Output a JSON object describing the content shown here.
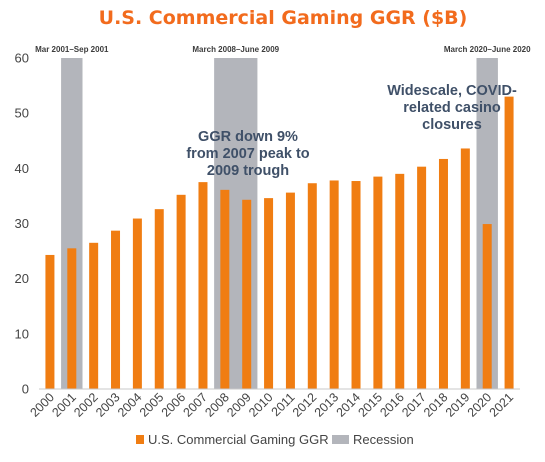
{
  "chart_data": {
    "type": "bar",
    "title": "U.S. Commercial Gaming GGR ($B)",
    "categories": [
      "2000",
      "2001",
      "2002",
      "2003",
      "2004",
      "2005",
      "2006",
      "2007",
      "2008",
      "2009",
      "2010",
      "2011",
      "2012",
      "2013",
      "2014",
      "2015",
      "2016",
      "2017",
      "2018",
      "2019",
      "2020",
      "2021"
    ],
    "series": [
      {
        "name": "U.S. Commercial Gaming GGR",
        "color": "#f07d12",
        "values": [
          24.3,
          25.5,
          26.5,
          28.7,
          30.9,
          32.6,
          35.2,
          37.5,
          36.1,
          34.3,
          34.6,
          35.6,
          37.3,
          37.8,
          37.7,
          38.5,
          39.0,
          40.3,
          41.7,
          43.6,
          29.9,
          53.0
        ]
      }
    ],
    "recession": {
      "name": "Recession",
      "color": "#b3b5bb",
      "periods": [
        {
          "label": "Mar 2001–Sep 2001",
          "start": "2001",
          "end": "2001"
        },
        {
          "label": "March 2008–June 2009",
          "start": "2008",
          "end": "2009"
        },
        {
          "label": "March 2020–June 2020",
          "start": "2020",
          "end": "2020"
        }
      ]
    },
    "annotations": [
      {
        "lines": [
          "GGR down 9%",
          "from 2007 peak to",
          "2009 trough"
        ]
      },
      {
        "lines": [
          "Widescale, COVID-",
          "related casino",
          "closures"
        ]
      }
    ],
    "xlabel": "",
    "ylabel": "",
    "ylim": [
      0,
      60
    ],
    "yticks": [
      0,
      10,
      20,
      30,
      40,
      50,
      60
    ],
    "grid": false,
    "legend": "bottom"
  }
}
